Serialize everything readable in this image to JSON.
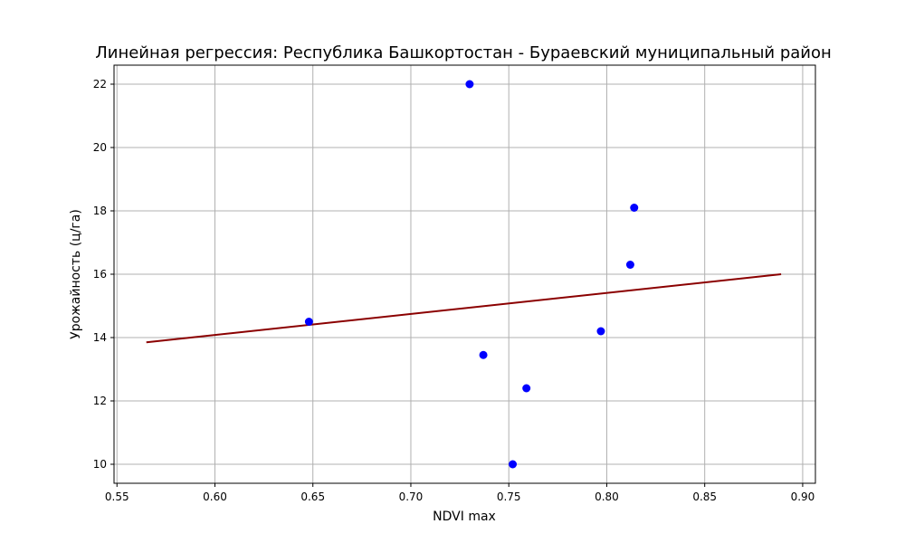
{
  "chart_data": {
    "type": "scatter",
    "title": "Линейная регрессия: Республика Башкортостан - Бураевский муниципальный район",
    "xlabel": "NDVI max",
    "ylabel": "Урожайность (ц/га)",
    "xlim": [
      0.5485,
      0.9065
    ],
    "ylim": [
      9.4,
      22.6
    ],
    "xticks": [
      0.55,
      0.6,
      0.65,
      0.7,
      0.75,
      0.8,
      0.85,
      0.9
    ],
    "xtick_labels": [
      "0.55",
      "0.60",
      "0.65",
      "0.70",
      "0.75",
      "0.80",
      "0.85",
      "0.90"
    ],
    "yticks": [
      10,
      12,
      14,
      16,
      18,
      20,
      22
    ],
    "ytick_labels": [
      "10",
      "12",
      "14",
      "16",
      "18",
      "20",
      "22"
    ],
    "grid": true,
    "points": [
      {
        "x": 0.648,
        "y": 14.5
      },
      {
        "x": 0.73,
        "y": 22.0
      },
      {
        "x": 0.737,
        "y": 13.45
      },
      {
        "x": 0.752,
        "y": 10.0
      },
      {
        "x": 0.759,
        "y": 12.4
      },
      {
        "x": 0.797,
        "y": 14.2
      },
      {
        "x": 0.812,
        "y": 16.3
      },
      {
        "x": 0.814,
        "y": 18.1
      }
    ],
    "regression_line": {
      "x": [
        0.565,
        0.889
      ],
      "y": [
        13.85,
        16.0
      ]
    },
    "colors": {
      "points": "#0000ff",
      "line": "#8b0000",
      "grid": "#b0b0b0",
      "axes": "#000000"
    }
  }
}
